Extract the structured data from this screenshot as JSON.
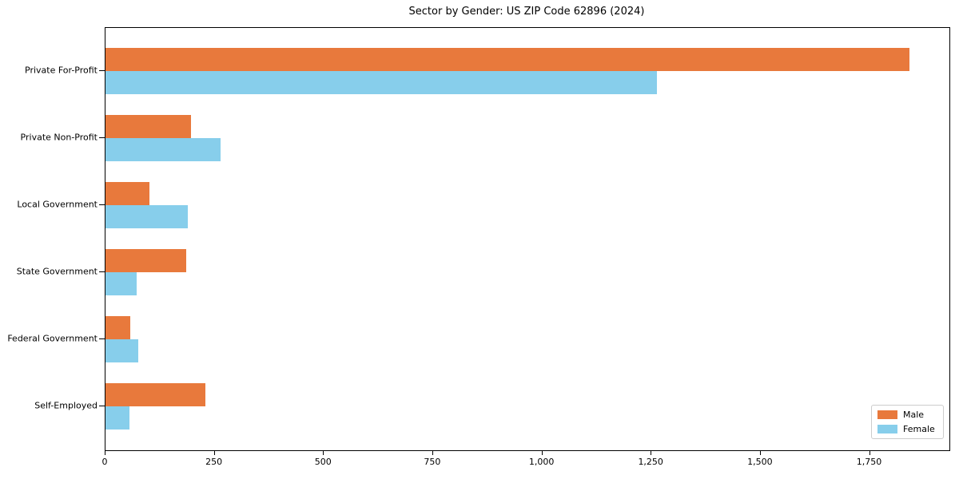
{
  "chart_data": {
    "type": "bar",
    "orientation": "horizontal",
    "title": "Sector by Gender: US ZIP Code 62896 (2024)",
    "categories": [
      "Private For-Profit",
      "Private Non-Profit",
      "Local Government",
      "State Government",
      "Federal Government",
      "Self-Employed"
    ],
    "series": [
      {
        "name": "Male",
        "color": "#E8793C",
        "values": [
          1840,
          195,
          100,
          185,
          57,
          229
        ]
      },
      {
        "name": "Female",
        "color": "#87CEEB",
        "values": [
          1263,
          264,
          189,
          71,
          75,
          55
        ]
      }
    ],
    "xlim": [
      0,
      1932
    ],
    "x_ticks": [
      0,
      250,
      500,
      750,
      1000,
      1250,
      1500,
      1750
    ],
    "x_tick_labels": [
      "0",
      "250",
      "500",
      "750",
      "1,000",
      "1,250",
      "1,500",
      "1,750"
    ],
    "ylabel": "",
    "xlabel": "",
    "grid": false,
    "legend_position": "lower right",
    "colors": {
      "background": "#FFFFFF",
      "spine": "#000000",
      "legend_border": "#CCCCCC",
      "text": "#000000"
    }
  }
}
